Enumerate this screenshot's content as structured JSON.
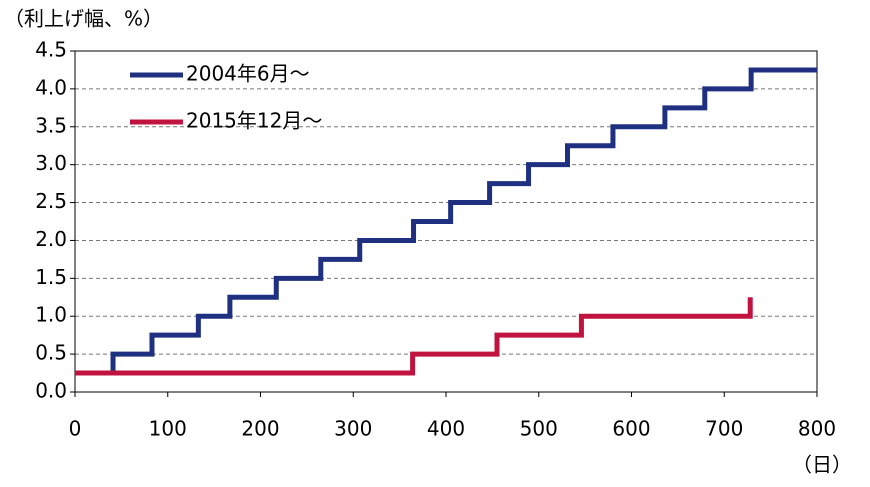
{
  "chart_data": {
    "type": "step",
    "y_label": "（利上げ幅、%）",
    "x_label": "（日）",
    "xlim": [
      0,
      800
    ],
    "xticks": [
      0,
      100,
      200,
      300,
      400,
      500,
      600,
      700,
      800
    ],
    "ylim": [
      0,
      4.5
    ],
    "yticks": [
      {
        "value": 0,
        "label": "0.0"
      },
      {
        "value": 0.5,
        "label": "0.5"
      },
      {
        "value": 1,
        "label": "1.0"
      },
      {
        "value": 1.5,
        "label": "1.5"
      },
      {
        "value": 2,
        "label": "2.0"
      },
      {
        "value": 2.5,
        "label": "2.5"
      },
      {
        "value": 3,
        "label": "3.0"
      },
      {
        "value": 3.5,
        "label": "3.5"
      },
      {
        "value": 4,
        "label": "4.0"
      },
      {
        "value": 4.5,
        "label": "4.5"
      }
    ],
    "grid": true,
    "legend": "upper left",
    "series": [
      {
        "name": "2004年6月～",
        "color": "#1f3080",
        "x": [
          0,
          41,
          83,
          133,
          167,
          217,
          265,
          307,
          365,
          405,
          447,
          489,
          531,
          580,
          636,
          679,
          729,
          800
        ],
        "values": [
          0.25,
          0.5,
          0.75,
          1,
          1.25,
          1.5,
          1.75,
          2,
          2.25,
          2.5,
          2.75,
          3,
          3.25,
          3.5,
          3.75,
          4,
          4.25,
          4.25
        ]
      },
      {
        "name": "2015年12月～",
        "color": "#c0133f",
        "x": [
          0,
          364,
          455,
          546,
          728
        ],
        "values": [
          0.25,
          0.5,
          0.75,
          1,
          1.25
        ]
      }
    ]
  }
}
